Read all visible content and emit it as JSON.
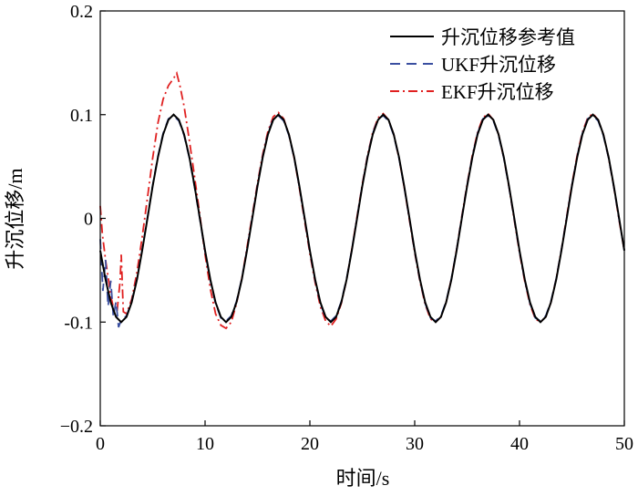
{
  "chart_data": {
    "type": "line",
    "xlabel": "时间/s",
    "ylabel": "升沉位移/m",
    "xlim": [
      0,
      50
    ],
    "ylim": [
      -0.2,
      0.2
    ],
    "xticks": [
      0,
      10,
      20,
      30,
      40,
      50
    ],
    "yticks": [
      -0.2,
      -0.1,
      0,
      0.1,
      0.2
    ],
    "xtick_labels": [
      "0",
      "10",
      "20",
      "30",
      "40",
      "50"
    ],
    "ytick_labels": [
      "−0.2",
      "-0.1",
      "0",
      "0.1",
      "0.2"
    ],
    "grid": false,
    "legend_position": "top-right",
    "series": [
      {
        "name": "升沉位移参考值",
        "color": "#000000",
        "dash": "solid",
        "x": [
          0.0,
          0.5,
          1.0,
          1.5,
          2.0,
          2.5,
          3.0,
          3.5,
          4.0,
          4.5,
          5.0,
          5.5,
          6.0,
          6.5,
          7.0,
          7.5,
          8.0,
          8.5,
          9.0,
          9.5,
          10.0,
          10.5,
          11.0,
          11.5,
          12.0,
          12.5,
          13.0,
          13.5,
          14.0,
          14.5,
          15.0,
          15.5,
          16.0,
          16.5,
          17.0,
          17.5,
          18.0,
          18.5,
          19.0,
          19.5,
          20.0,
          20.5,
          21.0,
          21.5,
          22.0,
          22.5,
          23.0,
          23.5,
          24.0,
          24.5,
          25.0,
          25.5,
          26.0,
          26.5,
          27.0,
          27.5,
          28.0,
          28.5,
          29.0,
          29.5,
          30.0,
          30.5,
          31.0,
          31.5,
          32.0,
          32.5,
          33.0,
          33.5,
          34.0,
          34.5,
          35.0,
          35.5,
          36.0,
          36.5,
          37.0,
          37.5,
          38.0,
          38.5,
          39.0,
          39.5,
          40.0,
          40.5,
          41.0,
          41.5,
          42.0,
          42.5,
          43.0,
          43.5,
          44.0,
          44.5,
          45.0,
          45.5,
          46.0,
          46.5,
          47.0,
          47.5,
          48.0,
          48.5,
          49.0,
          49.5,
          50.0
        ],
        "y": [
          -0.031,
          -0.059,
          -0.081,
          -0.095,
          -0.1,
          -0.095,
          -0.081,
          -0.059,
          -0.031,
          0.0,
          0.031,
          0.059,
          0.081,
          0.095,
          0.1,
          0.095,
          0.081,
          0.059,
          0.031,
          0.0,
          -0.031,
          -0.059,
          -0.081,
          -0.095,
          -0.1,
          -0.095,
          -0.081,
          -0.059,
          -0.031,
          0.0,
          0.031,
          0.059,
          0.081,
          0.095,
          0.1,
          0.095,
          0.081,
          0.059,
          0.031,
          0.0,
          -0.031,
          -0.059,
          -0.081,
          -0.095,
          -0.1,
          -0.095,
          -0.081,
          -0.059,
          -0.031,
          0.0,
          0.031,
          0.059,
          0.081,
          0.095,
          0.1,
          0.095,
          0.081,
          0.059,
          0.031,
          0.0,
          -0.031,
          -0.059,
          -0.081,
          -0.095,
          -0.1,
          -0.095,
          -0.081,
          -0.059,
          -0.031,
          0.0,
          0.031,
          0.059,
          0.081,
          0.095,
          0.1,
          0.095,
          0.081,
          0.059,
          0.031,
          0.0,
          -0.031,
          -0.059,
          -0.081,
          -0.095,
          -0.1,
          -0.095,
          -0.081,
          -0.059,
          -0.031,
          0.0,
          0.031,
          0.059,
          0.081,
          0.095,
          0.1,
          0.095,
          0.081,
          0.059,
          0.031,
          0.0,
          -0.031
        ]
      },
      {
        "name": "UKF升沉位移",
        "color": "#3a4fa0",
        "dash": "dashed",
        "x": [
          0.0,
          0.25,
          0.5,
          0.75,
          1.0,
          1.25,
          1.5,
          1.75,
          2.0,
          2.5,
          3.0,
          3.5,
          4.0,
          4.5,
          5.0,
          5.5,
          6.0,
          6.5,
          7.0,
          7.5,
          8.0,
          8.5,
          9.0,
          9.5,
          10.0,
          10.5,
          11.0,
          11.5,
          12.0,
          12.5,
          13.0,
          13.5,
          14.0,
          14.5,
          15.0,
          15.5,
          16.0,
          16.5,
          17.0,
          17.5,
          18.0,
          18.5,
          19.0,
          19.5,
          20.0,
          20.5,
          21.0,
          21.5,
          22.0,
          22.5,
          23.0,
          23.5,
          24.0,
          24.5,
          25.0,
          25.5,
          26.0,
          26.5,
          27.0,
          27.5,
          28.0,
          28.5,
          29.0,
          29.5,
          30.0,
          30.5,
          31.0,
          31.5,
          32.0,
          32.5,
          33.0,
          33.5,
          34.0,
          34.5,
          35.0,
          35.5,
          36.0,
          36.5,
          37.0,
          37.5,
          38.0,
          38.5,
          39.0,
          39.5,
          40.0,
          40.5,
          41.0,
          41.5,
          42.0,
          42.5,
          43.0,
          43.5,
          44.0,
          44.5,
          45.0,
          45.5,
          46.0,
          46.5,
          47.0,
          47.5,
          48.0,
          48.5,
          49.0,
          49.5,
          50.0
        ],
        "y": [
          -0.02,
          -0.07,
          -0.04,
          -0.085,
          -0.06,
          -0.095,
          -0.08,
          -0.105,
          -0.098,
          -0.094,
          -0.08,
          -0.058,
          -0.03,
          0.001,
          0.032,
          0.06,
          0.082,
          0.096,
          0.099,
          0.094,
          0.08,
          0.058,
          0.03,
          -0.001,
          -0.032,
          -0.06,
          -0.082,
          -0.096,
          -0.099,
          -0.094,
          -0.08,
          -0.058,
          -0.03,
          0.001,
          0.032,
          0.06,
          0.082,
          0.096,
          0.099,
          0.094,
          0.08,
          0.058,
          0.03,
          -0.001,
          -0.032,
          -0.06,
          -0.082,
          -0.096,
          -0.099,
          -0.094,
          -0.08,
          -0.058,
          -0.03,
          0.001,
          0.032,
          0.06,
          0.082,
          0.096,
          0.099,
          0.094,
          0.08,
          0.058,
          0.03,
          -0.001,
          -0.032,
          -0.06,
          -0.082,
          -0.096,
          -0.099,
          -0.094,
          -0.08,
          -0.058,
          -0.03,
          0.001,
          0.032,
          0.06,
          0.082,
          0.096,
          0.099,
          0.094,
          0.08,
          0.058,
          0.03,
          -0.001,
          -0.032,
          -0.06,
          -0.082,
          -0.096,
          -0.099,
          -0.094,
          -0.08,
          -0.058,
          -0.03,
          0.001,
          0.032,
          0.06,
          0.082,
          0.096,
          0.099,
          0.094,
          0.08,
          0.058,
          0.03,
          -0.001,
          -0.031
        ]
      },
      {
        "name": "EKF升沉位移",
        "color": "#e02020",
        "dash": "dashdot",
        "x": [
          0.0,
          0.2,
          0.5,
          0.8,
          1.0,
          1.3,
          1.6,
          1.9,
          2.0,
          2.2,
          2.5,
          3.0,
          3.5,
          4.0,
          4.5,
          5.0,
          5.5,
          6.0,
          6.5,
          7.0,
          7.3,
          7.6,
          8.0,
          8.5,
          9.0,
          9.5,
          10.0,
          10.5,
          11.0,
          11.5,
          12.0,
          12.5,
          13.0,
          13.5,
          14.0,
          14.5,
          15.0,
          15.5,
          16.0,
          16.5,
          17.0,
          17.5,
          18.0,
          18.5,
          19.0,
          19.5,
          20.0,
          20.5,
          21.0,
          21.5,
          22.0,
          22.5,
          23.0,
          23.5,
          24.0,
          24.5,
          25.0,
          25.5,
          26.0,
          26.5,
          27.0,
          27.5,
          28.0,
          28.5,
          29.0,
          29.5,
          30.0,
          30.5,
          31.0,
          31.5,
          32.0,
          32.5,
          33.0,
          33.5,
          34.0,
          34.5,
          35.0,
          35.5,
          36.0,
          36.5,
          37.0,
          37.5,
          38.0,
          38.5,
          39.0,
          39.5,
          40.0,
          40.5,
          41.0,
          41.5,
          42.0,
          42.5,
          43.0,
          43.5,
          44.0,
          44.5,
          45.0,
          45.5,
          46.0,
          46.5,
          47.0,
          47.5,
          48.0,
          48.5,
          49.0,
          49.5,
          50.0
        ],
        "y": [
          0.012,
          -0.015,
          -0.04,
          -0.06,
          -0.075,
          -0.088,
          -0.09,
          -0.06,
          -0.035,
          -0.09,
          -0.092,
          -0.078,
          -0.052,
          -0.018,
          0.02,
          0.058,
          0.092,
          0.115,
          0.128,
          0.135,
          0.14,
          0.128,
          0.108,
          0.075,
          0.04,
          0.003,
          -0.035,
          -0.068,
          -0.092,
          -0.103,
          -0.106,
          -0.1,
          -0.082,
          -0.058,
          -0.028,
          0.003,
          0.034,
          0.062,
          0.084,
          0.098,
          0.102,
          0.096,
          0.081,
          0.058,
          0.029,
          -0.003,
          -0.034,
          -0.062,
          -0.085,
          -0.099,
          -0.104,
          -0.097,
          -0.082,
          -0.059,
          -0.03,
          0.002,
          0.033,
          0.061,
          0.083,
          0.097,
          0.101,
          0.095,
          0.081,
          0.058,
          0.03,
          -0.002,
          -0.033,
          -0.061,
          -0.083,
          -0.097,
          -0.1,
          -0.095,
          -0.081,
          -0.058,
          -0.03,
          0.002,
          0.033,
          0.061,
          0.083,
          0.097,
          0.101,
          0.095,
          0.081,
          0.058,
          0.03,
          -0.002,
          -0.033,
          -0.061,
          -0.083,
          -0.097,
          -0.1,
          -0.095,
          -0.081,
          -0.058,
          -0.03,
          0.002,
          0.033,
          0.061,
          0.083,
          0.097,
          0.101,
          0.095,
          0.081,
          0.058,
          0.03,
          -0.002,
          -0.031
        ]
      }
    ]
  }
}
